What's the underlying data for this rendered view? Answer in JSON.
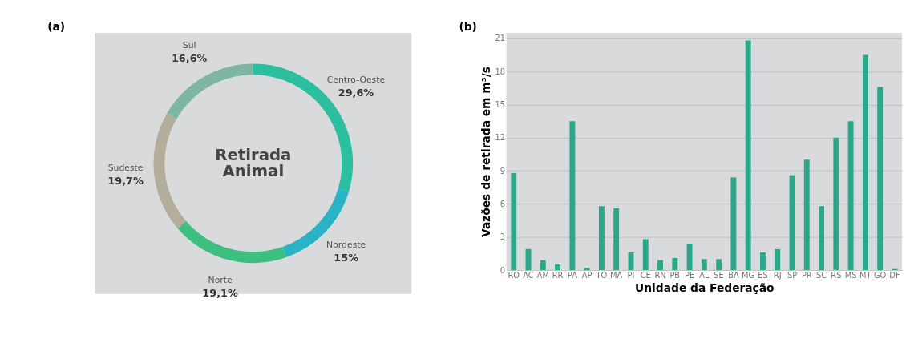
{
  "chart_data": [
    {
      "type": "donut",
      "title": "Retirada Animal",
      "annotations": [
        "(a)"
      ],
      "categories": [
        "Centro-Oeste",
        "Nordeste",
        "Norte",
        "Sudeste",
        "Sul"
      ],
      "values": [
        29.6,
        15,
        19.1,
        19.7,
        16.6
      ],
      "value_labels": [
        "29,6%",
        "15%",
        "19,1%",
        "19,7%",
        "16,6%"
      ],
      "colors": [
        "#2bbf9f",
        "#2ab3c6",
        "#3dbf80",
        "#b2ae9b",
        "#7fb6a2"
      ]
    },
    {
      "type": "bar",
      "annotations": [
        "(b)"
      ],
      "xlabel": "Unidade da Federação",
      "ylabel": "Vazões de retirada em m³/s",
      "categories": [
        "RO",
        "AC",
        "AM",
        "RR",
        "PA",
        "AP",
        "TO",
        "MA",
        "PI",
        "CE",
        "RN",
        "PB",
        "PE",
        "AL",
        "SE",
        "BA",
        "MG",
        "ES",
        "RJ",
        "SP",
        "PR",
        "SC",
        "RS",
        "MS",
        "MT",
        "GO",
        "DF"
      ],
      "values": [
        8.8,
        1.9,
        0.9,
        0.5,
        13.5,
        0.2,
        5.8,
        5.6,
        1.6,
        2.8,
        0.9,
        1.1,
        2.4,
        1.0,
        1.0,
        8.4,
        20.8,
        1.6,
        1.9,
        8.6,
        10.0,
        5.8,
        12.0,
        13.5,
        19.5,
        16.6,
        0.1
      ],
      "color": "#2aa889",
      "ylim": [
        0,
        21.5
      ],
      "yticks": [
        0,
        3,
        6,
        9,
        12,
        15,
        18,
        21
      ],
      "grid": "y"
    }
  ]
}
